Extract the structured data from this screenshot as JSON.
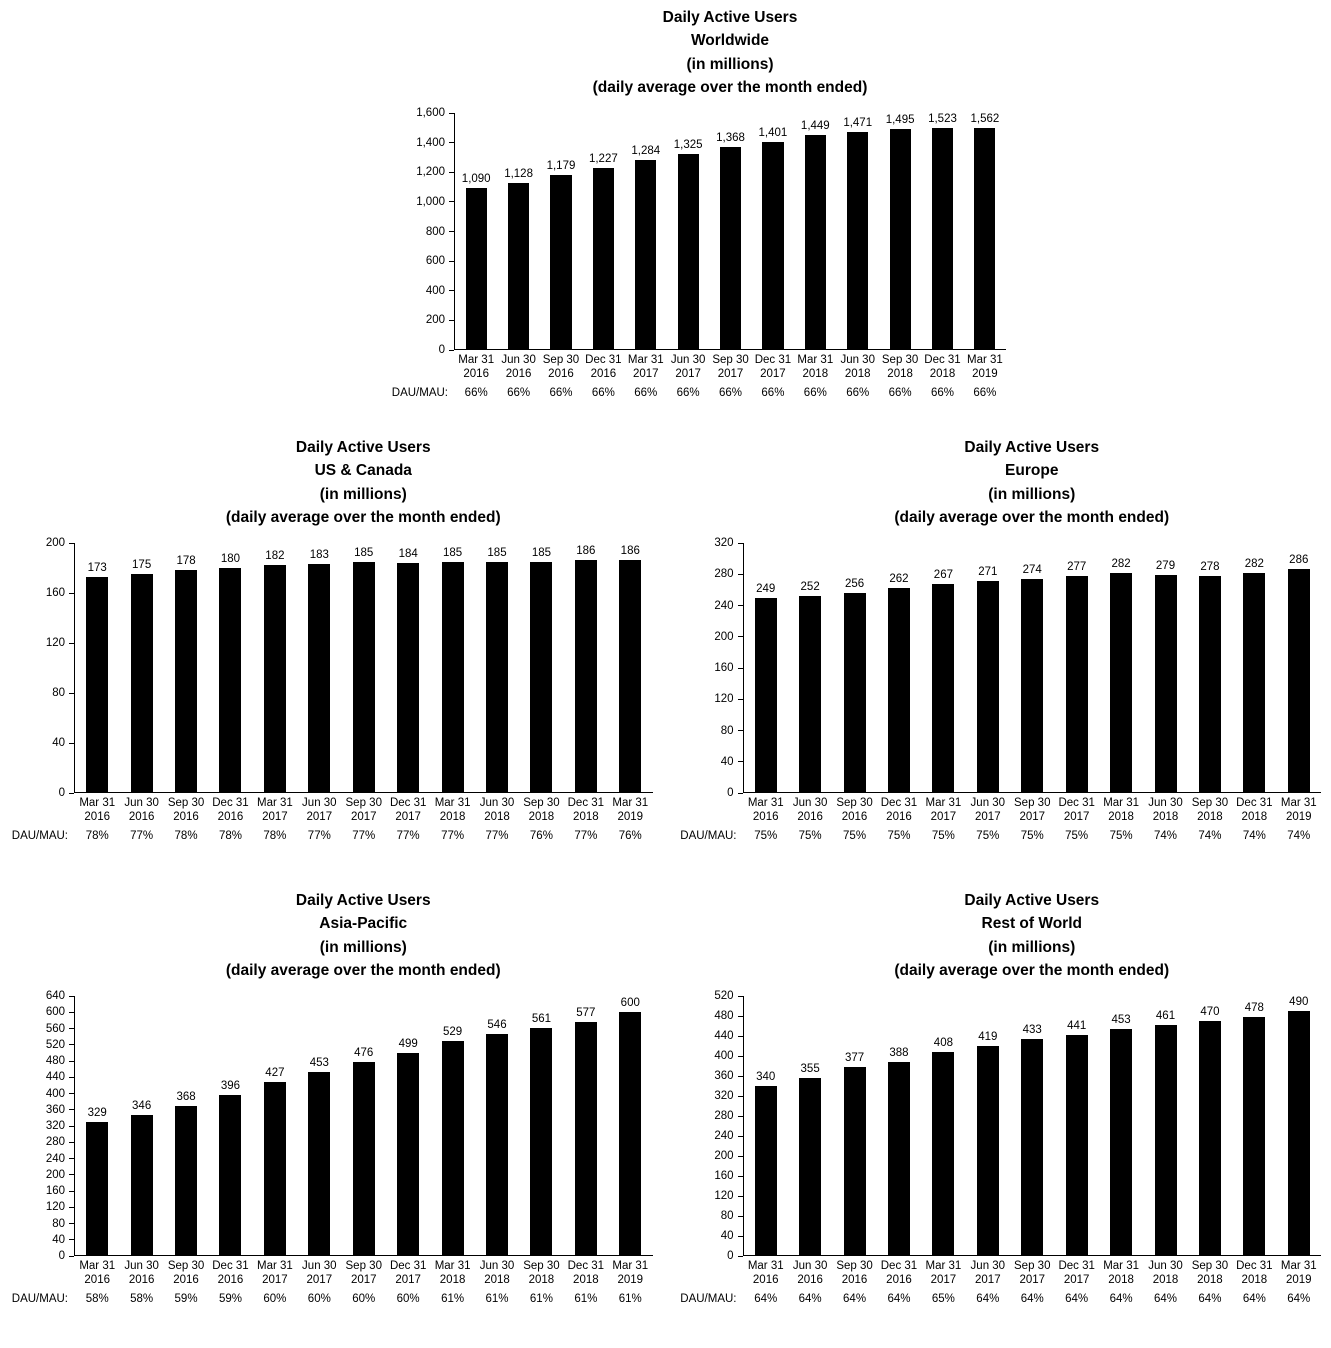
{
  "page": {
    "background": "#ffffff",
    "text_color": "#000000",
    "bar_color": "#000000"
  },
  "labels": {
    "dau_mau": "DAU/MAU:"
  },
  "chart_data": [
    {
      "id": "worldwide",
      "type": "bar",
      "title_lines": [
        "Daily Active Users",
        "Worldwide",
        "(in millions)",
        "(daily average over the month ended)"
      ],
      "categories": [
        [
          "Mar 31",
          "2016"
        ],
        [
          "Jun 30",
          "2016"
        ],
        [
          "Sep 30",
          "2016"
        ],
        [
          "Dec 31",
          "2016"
        ],
        [
          "Mar 31",
          "2017"
        ],
        [
          "Jun 30",
          "2017"
        ],
        [
          "Sep 30",
          "2017"
        ],
        [
          "Dec 31",
          "2017"
        ],
        [
          "Mar 31",
          "2018"
        ],
        [
          "Jun 30",
          "2018"
        ],
        [
          "Sep 30",
          "2018"
        ],
        [
          "Dec 31",
          "2018"
        ],
        [
          "Mar 31",
          "2019"
        ]
      ],
      "values": [
        1090,
        1128,
        1179,
        1227,
        1284,
        1325,
        1368,
        1401,
        1449,
        1471,
        1495,
        1523,
        1562
      ],
      "value_labels": [
        "1,090",
        "1,128",
        "1,179",
        "1,227",
        "1,284",
        "1,325",
        "1,368",
        "1,401",
        "1,449",
        "1,471",
        "1,495",
        "1,523",
        "1,562"
      ],
      "dau_mau": [
        "66%",
        "66%",
        "66%",
        "66%",
        "66%",
        "66%",
        "66%",
        "66%",
        "66%",
        "66%",
        "66%",
        "66%",
        "66%"
      ],
      "ylim": [
        0,
        1600
      ],
      "ytick_step": 200,
      "ytick_labels": [
        "0",
        "200",
        "400",
        "600",
        "800",
        "1,000",
        "1,200",
        "1,400",
        "1,600"
      ],
      "grid": false,
      "legend": false
    },
    {
      "id": "us-canada",
      "type": "bar",
      "title_lines": [
        "Daily Active Users",
        "US & Canada",
        "(in millions)",
        "(daily average over the month ended)"
      ],
      "categories": [
        [
          "Mar 31",
          "2016"
        ],
        [
          "Jun 30",
          "2016"
        ],
        [
          "Sep 30",
          "2016"
        ],
        [
          "Dec 31",
          "2016"
        ],
        [
          "Mar 31",
          "2017"
        ],
        [
          "Jun 30",
          "2017"
        ],
        [
          "Sep 30",
          "2017"
        ],
        [
          "Dec 31",
          "2017"
        ],
        [
          "Mar 31",
          "2018"
        ],
        [
          "Jun 30",
          "2018"
        ],
        [
          "Sep 30",
          "2018"
        ],
        [
          "Dec 31",
          "2018"
        ],
        [
          "Mar 31",
          "2019"
        ]
      ],
      "values": [
        173,
        175,
        178,
        180,
        182,
        183,
        185,
        184,
        185,
        185,
        185,
        186,
        186
      ],
      "dau_mau": [
        "78%",
        "77%",
        "78%",
        "78%",
        "78%",
        "77%",
        "77%",
        "77%",
        "77%",
        "77%",
        "76%",
        "77%",
        "76%"
      ],
      "ylim": [
        0,
        200
      ],
      "ytick_step": 40,
      "ytick_labels": [
        "0",
        "40",
        "80",
        "120",
        "160",
        "200"
      ],
      "grid": false,
      "legend": false
    },
    {
      "id": "europe",
      "type": "bar",
      "title_lines": [
        "Daily Active Users",
        "Europe",
        "(in millions)",
        "(daily average over the month ended)"
      ],
      "categories": [
        [
          "Mar 31",
          "2016"
        ],
        [
          "Jun 30",
          "2016"
        ],
        [
          "Sep 30",
          "2016"
        ],
        [
          "Dec 31",
          "2016"
        ],
        [
          "Mar 31",
          "2017"
        ],
        [
          "Jun 30",
          "2017"
        ],
        [
          "Sep 30",
          "2017"
        ],
        [
          "Dec 31",
          "2017"
        ],
        [
          "Mar 31",
          "2018"
        ],
        [
          "Jun 30",
          "2018"
        ],
        [
          "Sep 30",
          "2018"
        ],
        [
          "Dec 31",
          "2018"
        ],
        [
          "Mar 31",
          "2019"
        ]
      ],
      "values": [
        249,
        252,
        256,
        262,
        267,
        271,
        274,
        277,
        282,
        279,
        278,
        282,
        286
      ],
      "dau_mau": [
        "75%",
        "75%",
        "75%",
        "75%",
        "75%",
        "75%",
        "75%",
        "75%",
        "75%",
        "74%",
        "74%",
        "74%",
        "74%"
      ],
      "ylim": [
        0,
        320
      ],
      "ytick_step": 40,
      "ytick_labels": [
        "0",
        "40",
        "80",
        "120",
        "160",
        "200",
        "240",
        "280",
        "320"
      ],
      "grid": false,
      "legend": false
    },
    {
      "id": "asia-pacific",
      "type": "bar",
      "title_lines": [
        "Daily Active Users",
        "Asia-Pacific",
        "(in millions)",
        "(daily average over the month ended)"
      ],
      "categories": [
        [
          "Mar 31",
          "2016"
        ],
        [
          "Jun 30",
          "2016"
        ],
        [
          "Sep 30",
          "2016"
        ],
        [
          "Dec 31",
          "2016"
        ],
        [
          "Mar 31",
          "2017"
        ],
        [
          "Jun 30",
          "2017"
        ],
        [
          "Sep 30",
          "2017"
        ],
        [
          "Dec 31",
          "2017"
        ],
        [
          "Mar 31",
          "2018"
        ],
        [
          "Jun 30",
          "2018"
        ],
        [
          "Sep 30",
          "2018"
        ],
        [
          "Dec 31",
          "2018"
        ],
        [
          "Mar 31",
          "2019"
        ]
      ],
      "values": [
        329,
        346,
        368,
        396,
        427,
        453,
        476,
        499,
        529,
        546,
        561,
        577,
        600
      ],
      "dau_mau": [
        "58%",
        "58%",
        "59%",
        "59%",
        "60%",
        "60%",
        "60%",
        "60%",
        "61%",
        "61%",
        "61%",
        "61%",
        "61%"
      ],
      "ylim": [
        0,
        640
      ],
      "ytick_step": 40,
      "ytick_labels": [
        "0",
        "40",
        "80",
        "120",
        "160",
        "200",
        "240",
        "280",
        "320",
        "360",
        "400",
        "440",
        "480",
        "520",
        "560",
        "600",
        "640"
      ],
      "grid": false,
      "legend": false
    },
    {
      "id": "rest-of-world",
      "type": "bar",
      "title_lines": [
        "Daily Active Users",
        "Rest of World",
        "(in millions)",
        "(daily average over the month ended)"
      ],
      "categories": [
        [
          "Mar 31",
          "2016"
        ],
        [
          "Jun 30",
          "2016"
        ],
        [
          "Sep 30",
          "2016"
        ],
        [
          "Dec 31",
          "2016"
        ],
        [
          "Mar 31",
          "2017"
        ],
        [
          "Jun 30",
          "2017"
        ],
        [
          "Sep 30",
          "2017"
        ],
        [
          "Dec 31",
          "2017"
        ],
        [
          "Mar 31",
          "2018"
        ],
        [
          "Jun 30",
          "2018"
        ],
        [
          "Sep 30",
          "2018"
        ],
        [
          "Dec 31",
          "2018"
        ],
        [
          "Mar 31",
          "2019"
        ]
      ],
      "values": [
        340,
        355,
        377,
        388,
        408,
        419,
        433,
        441,
        453,
        461,
        470,
        478,
        490
      ],
      "dau_mau": [
        "64%",
        "64%",
        "64%",
        "64%",
        "65%",
        "64%",
        "64%",
        "64%",
        "64%",
        "64%",
        "64%",
        "64%",
        "64%"
      ],
      "ylim": [
        0,
        520
      ],
      "ytick_step": 40,
      "ytick_labels": [
        "0",
        "40",
        "80",
        "120",
        "160",
        "200",
        "240",
        "280",
        "320",
        "360",
        "400",
        "440",
        "480",
        "520"
      ],
      "grid": false,
      "legend": false
    }
  ]
}
